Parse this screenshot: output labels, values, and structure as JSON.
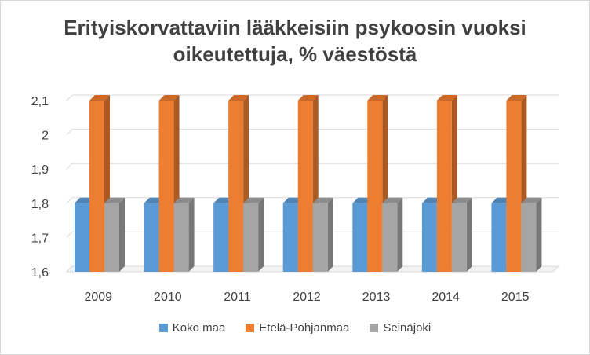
{
  "chart_data": {
    "type": "bar",
    "style": "3d-clustered-column",
    "title_lines": [
      "Erityiskorvattaviin lääkkeisiin psykoosin vuoksi",
      "oikeutettuja, % väestöstä"
    ],
    "categories": [
      "2009",
      "2010",
      "2011",
      "2012",
      "2013",
      "2014",
      "2015"
    ],
    "series": [
      {
        "name": "Koko maa",
        "color": "#5b9bd5",
        "values": [
          1.8,
          1.8,
          1.8,
          1.8,
          1.8,
          1.8,
          1.8
        ]
      },
      {
        "name": "Etelä-Pohjanmaa",
        "color": "#ed7d31",
        "values": [
          2.1,
          2.1,
          2.1,
          2.1,
          2.1,
          2.1,
          2.1
        ]
      },
      {
        "name": "Seinäjoki",
        "color": "#a5a5a5",
        "values": [
          1.8,
          1.8,
          1.8,
          1.8,
          1.8,
          1.8,
          1.8
        ]
      }
    ],
    "ylim": [
      1.6,
      2.1
    ],
    "yticks": [
      "1,6",
      "1,7",
      "1,8",
      "1,9",
      "2",
      "2,1"
    ],
    "grid": true,
    "legend_position": "bottom"
  }
}
